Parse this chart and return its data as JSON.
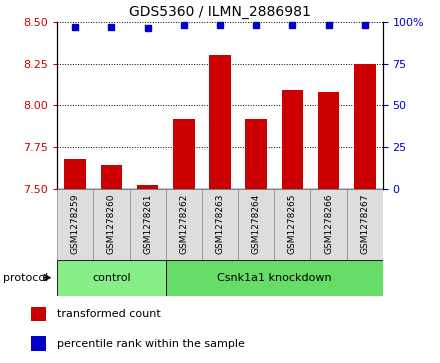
{
  "title": "GDS5360 / ILMN_2886981",
  "samples": [
    "GSM1278259",
    "GSM1278260",
    "GSM1278261",
    "GSM1278262",
    "GSM1278263",
    "GSM1278264",
    "GSM1278265",
    "GSM1278266",
    "GSM1278267"
  ],
  "transformed_count": [
    7.68,
    7.64,
    7.52,
    7.92,
    8.3,
    7.92,
    8.09,
    8.08,
    8.25
  ],
  "percentile_rank": [
    97,
    97,
    96,
    98,
    98,
    98,
    98,
    98,
    98
  ],
  "ylim_left": [
    7.5,
    8.5
  ],
  "ylim_right": [
    0,
    100
  ],
  "yticks_left": [
    7.5,
    7.75,
    8.0,
    8.25,
    8.5
  ],
  "yticks_right": [
    0,
    25,
    50,
    75,
    100
  ],
  "ytick_labels_right": [
    "0",
    "25",
    "50",
    "75",
    "100%"
  ],
  "bar_color": "#cc0000",
  "dot_color": "#0000cc",
  "bar_width": 0.6,
  "groups": [
    {
      "label": "control",
      "indices": [
        0,
        1,
        2
      ],
      "color": "#88ee88"
    },
    {
      "label": "Csnk1a1 knockdown",
      "indices": [
        3,
        4,
        5,
        6,
        7,
        8
      ],
      "color": "#66dd66"
    }
  ],
  "protocol_label": "protocol",
  "legend_bar_label": "transformed count",
  "legend_dot_label": "percentile rank within the sample",
  "background_color": "#ffffff",
  "tick_label_color_left": "#cc0000",
  "tick_label_color_right": "#0000cc",
  "sample_box_color": "#dddddd",
  "sample_box_edge": "#888888"
}
